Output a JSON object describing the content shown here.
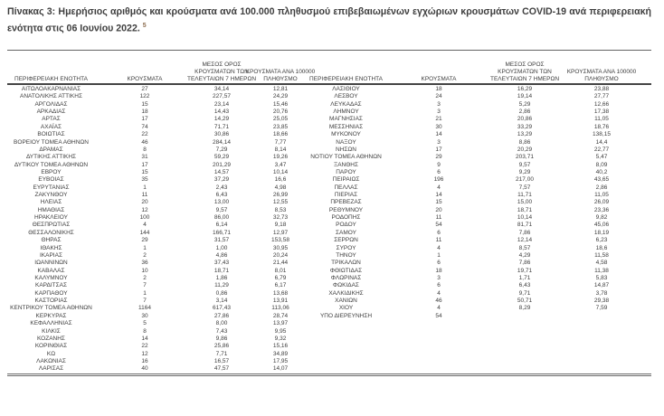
{
  "page": {
    "title_line1": "Πίνακας 3:  Ημερήσιος αριθμός και κρούσματα ανά 100.000 πληθυσμού επιβεβαιωμένων εγχώριων κρουσμάτων COVID-19 ανά περιφερειακή",
    "title_line2": "ενότητα στις 06 Ιουνίου 2022.",
    "footnote_marker": "5"
  },
  "table": {
    "header": {
      "region": "ΠΕΡΙΦΕΡΕΙΑΚΗ ΕΝΟΤΗΤΑ",
      "cases": "ΚΡΟΥΣΜΑΤΑ",
      "avg7": "ΜΕΣΟΣ ΟΡΟΣ\nΚΡΟΥΣΜΑΤΩΝ ΤΩΝ\nΤΕΛΕΥΤΑΙΩΝ 7 ΗΜΕΡΩΝ",
      "per100k": "ΚΡΟΥΣΜΑΤΑ ΑΝΑ 100000\nΠΛΗΘΥΣΜΟ"
    },
    "left_rows": [
      [
        "ΑΙΤΩΛΟΑΚΑΡΝΑΝΙΑΣ",
        "27",
        "34,14",
        "12,81"
      ],
      [
        "ΑΝΑΤΟΛΙΚΗΣ ΑΤΤΙΚΗΣ",
        "122",
        "227,57",
        "24,29"
      ],
      [
        "ΑΡΓΟΛΙΔΑΣ",
        "15",
        "23,14",
        "15,46"
      ],
      [
        "ΑΡΚΑΔΙΑΣ",
        "18",
        "14,43",
        "20,76"
      ],
      [
        "ΑΡΤΑΣ",
        "17",
        "14,29",
        "25,05"
      ],
      [
        "ΑΧΑΪΑΣ",
        "74",
        "71,71",
        "23,85"
      ],
      [
        "ΒΟΙΩΤΙΑΣ",
        "22",
        "30,86",
        "18,66"
      ],
      [
        "ΒΟΡΕΙΟΥ ΤΟΜΕΑ ΑΘΗΝΩΝ",
        "46",
        "284,14",
        "7,77"
      ],
      [
        "ΔΡΑΜΑΣ",
        "8",
        "7,29",
        "8,14"
      ],
      [
        "ΔΥΤΙΚΗΣ ΑΤΤΙΚΗΣ",
        "31",
        "59,29",
        "19,26"
      ],
      [
        "ΔΥΤΙΚΟΥ ΤΟΜΕΑ ΑΘΗΝΩΝ",
        "17",
        "201,29",
        "3,47"
      ],
      [
        "ΕΒΡΟΥ",
        "15",
        "14,57",
        "10,14"
      ],
      [
        "ΕΥΒΟΙΑΣ",
        "35",
        "37,29",
        "16,6"
      ],
      [
        "ΕΥΡΥΤΑΝΙΑΣ",
        "1",
        "2,43",
        "4,98"
      ],
      [
        "ΖΑΚΥΝΘΟΥ",
        "11",
        "6,43",
        "26,99"
      ],
      [
        "ΗΛΕΙΑΣ",
        "20",
        "13,00",
        "12,55"
      ],
      [
        "ΗΜΑΘΙΑΣ",
        "12",
        "9,57",
        "8,53"
      ],
      [
        "ΗΡΑΚΛΕΙΟΥ",
        "100",
        "86,00",
        "32,73"
      ],
      [
        "ΘΕΣΠΡΩΤΙΑΣ",
        "4",
        "6,14",
        "9,18"
      ],
      [
        "ΘΕΣΣΑΛΟΝΙΚΗΣ",
        "144",
        "166,71",
        "12,97"
      ],
      [
        "ΘΗΡΑΣ",
        "29",
        "31,57",
        "153,58"
      ],
      [
        "ΙΘΑΚΗΣ",
        "1",
        "1,00",
        "30,95"
      ],
      [
        "ΙΚΑΡΙΑΣ",
        "2",
        "4,86",
        "20,24"
      ],
      [
        "ΙΩΑΝΝΙΝΩΝ",
        "36",
        "37,43",
        "21,44"
      ],
      [
        "ΚΑΒΑΛΑΣ",
        "10",
        "18,71",
        "8,01"
      ],
      [
        "ΚΑΛΥΜΝΟΥ",
        "2",
        "1,86",
        "6,79"
      ],
      [
        "ΚΑΡΔΙΤΣΑΣ",
        "7",
        "11,29",
        "6,17"
      ],
      [
        "ΚΑΡΠΑΘΟΥ",
        "1",
        "0,86",
        "13,68"
      ],
      [
        "ΚΑΣΤΟΡΙΑΣ",
        "7",
        "3,14",
        "13,91"
      ],
      [
        "ΚΕΝΤΡΙΚΟΥ ΤΟΜΕΑ ΑΘΗΝΩΝ",
        "1164",
        "617,43",
        "113,06"
      ],
      [
        "ΚΕΡΚΥΡΑΣ",
        "30",
        "27,86",
        "28,74"
      ],
      [
        "ΚΕΦΑΛΛΗΝΙΑΣ",
        "5",
        "8,00",
        "13,97"
      ],
      [
        "ΚΙΛΚΙΣ",
        "8",
        "7,43",
        "9,95"
      ],
      [
        "ΚΟΖΑΝΗΣ",
        "14",
        "9,86",
        "9,32"
      ],
      [
        "ΚΟΡΙΝΘΙΑΣ",
        "22",
        "25,86",
        "15,16"
      ],
      [
        "ΚΩ",
        "12",
        "7,71",
        "34,89"
      ],
      [
        "ΛΑΚΩΝΙΑΣ",
        "16",
        "16,57",
        "17,95"
      ],
      [
        "ΛΑΡΙΣΑΣ",
        "40",
        "47,57",
        "14,07"
      ]
    ],
    "right_rows": [
      [
        "ΛΑΣΙΘΙΟΥ",
        "18",
        "16,29",
        "23,88"
      ],
      [
        "ΛΕΣΒΟΥ",
        "24",
        "19,14",
        "27,77"
      ],
      [
        "ΛΕΥΚΑΔΑΣ",
        "3",
        "5,29",
        "12,66"
      ],
      [
        "ΛΗΜΝΟΥ",
        "3",
        "2,86",
        "17,38"
      ],
      [
        "ΜΑΓΝΗΣΙΑΣ",
        "21",
        "20,86",
        "11,05"
      ],
      [
        "ΜΕΣΣΗΝΙΑΣ",
        "30",
        "33,29",
        "18,76"
      ],
      [
        "ΜΥΚΟΝΟΥ",
        "14",
        "13,29",
        "138,15"
      ],
      [
        "ΝΑΞΟΥ",
        "3",
        "8,86",
        "14,4"
      ],
      [
        "ΝΗΣΩΝ",
        "17",
        "20,29",
        "22,77"
      ],
      [
        "ΝΟΤΙΟΥ ΤΟΜΕΑ ΑΘΗΝΩΝ",
        "29",
        "203,71",
        "5,47"
      ],
      [
        "ΞΑΝΘΗΣ",
        "9",
        "9,57",
        "8,09"
      ],
      [
        "ΠΑΡΟΥ",
        "6",
        "9,29",
        "40,2"
      ],
      [
        "ΠΕΙΡΑΙΩΣ",
        "196",
        "217,00",
        "43,65"
      ],
      [
        "ΠΕΛΛΑΣ",
        "4",
        "7,57",
        "2,86"
      ],
      [
        "ΠΙΕΡΙΑΣ",
        "14",
        "11,71",
        "11,05"
      ],
      [
        "ΠΡΕΒΕΖΑΣ",
        "15",
        "15,00",
        "26,09"
      ],
      [
        "ΡΕΘΥΜΝΟΥ",
        "20",
        "18,71",
        "23,36"
      ],
      [
        "ΡΟΔΟΠΗΣ",
        "11",
        "10,14",
        "9,82"
      ],
      [
        "ΡΟΔΟΥ",
        "54",
        "81,71",
        "45,06"
      ],
      [
        "ΣΑΜΟΥ",
        "6",
        "7,86",
        "18,19"
      ],
      [
        "ΣΕΡΡΩΝ",
        "11",
        "12,14",
        "6,23"
      ],
      [
        "ΣΥΡΟΥ",
        "4",
        "8,57",
        "18,6"
      ],
      [
        "ΤΗΝΟΥ",
        "1",
        "4,29",
        "11,58"
      ],
      [
        "ΤΡΙΚΑΛΩΝ",
        "6",
        "7,86",
        "4,58"
      ],
      [
        "ΦΘΙΩΤΙΔΑΣ",
        "18",
        "19,71",
        "11,38"
      ],
      [
        "ΦΛΩΡΙΝΑΣ",
        "3",
        "1,71",
        "5,83"
      ],
      [
        "ΦΩΚΙΔΑΣ",
        "6",
        "6,43",
        "14,87"
      ],
      [
        "ΧΑΛΚΙΔΙΚΗΣ",
        "4",
        "9,71",
        "3,78"
      ],
      [
        "ΧΑΝΙΩΝ",
        "46",
        "50,71",
        "29,38"
      ],
      [
        "ΧΙΟΥ",
        "4",
        "8,29",
        "7,59"
      ],
      [
        "ΥΠΟ ΔΙΕΡΕΥΝΗΣΗ",
        "54",
        "",
        ""
      ]
    ]
  }
}
